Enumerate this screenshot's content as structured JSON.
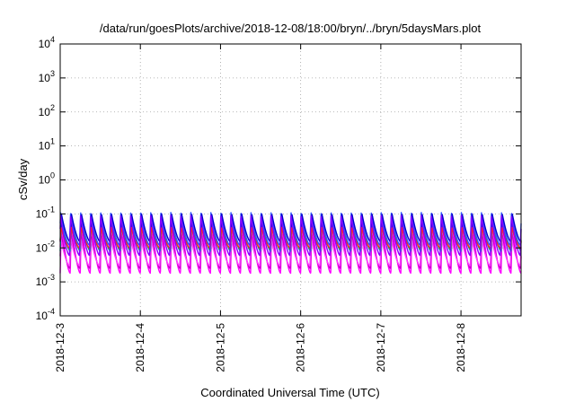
{
  "chart_data": {
    "type": "line",
    "title": "/data/run/goesPlots/archive/2018-12-08/18:00/bryn/../bryn/5daysMars.plot",
    "xlabel": "Coordinated Universal Time (UTC)",
    "ylabel": "cSv/day",
    "yscale": "log",
    "ylim": [
      0.0001,
      10000
    ],
    "y_ticks": [
      {
        "base": "10",
        "exp": "-4",
        "value": 0.0001
      },
      {
        "base": "10",
        "exp": "-3",
        "value": 0.001
      },
      {
        "base": "10",
        "exp": "-2",
        "value": 0.01
      },
      {
        "base": "10",
        "exp": "-1",
        "value": 0.1
      },
      {
        "base": "10",
        "exp": "0",
        "value": 1
      },
      {
        "base": "10",
        "exp": "1",
        "value": 10
      },
      {
        "base": "10",
        "exp": "2",
        "value": 100
      },
      {
        "base": "10",
        "exp": "3",
        "value": 1000
      },
      {
        "base": "10",
        "exp": "4",
        "value": 10000
      }
    ],
    "xlim": [
      "2018-12-03T00:00",
      "2018-12-08T18:00"
    ],
    "x_ticks": [
      "2018-12-3",
      "2018-12-4",
      "2018-12-5",
      "2018-12-6",
      "2018-12-7",
      "2018-12-8"
    ],
    "grid": true,
    "legend": "none",
    "cycles_per_day": 8,
    "series": [
      {
        "color": "#ff00ff",
        "peak": 0.055,
        "trough": 0.0018
      },
      {
        "color": "#cc00cc",
        "peak": 0.03,
        "trough": 0.0025
      },
      {
        "color": "#ff40ff",
        "peak": 0.02,
        "trough": 0.003
      },
      {
        "color": "#00bbbb",
        "peak": 0.08,
        "trough": 0.008
      },
      {
        "color": "#22aa44",
        "peak": 0.06,
        "trough": 0.009
      },
      {
        "color": "#3355ff",
        "peak": 0.11,
        "trough": 0.012
      },
      {
        "color": "#0000cc",
        "peak": 0.1,
        "trough": 0.015
      },
      {
        "color": "#ff2222",
        "peak": 0.04,
        "trough": 0.01
      },
      {
        "color": "#8800ff",
        "peak": 0.09,
        "trough": 0.006
      }
    ]
  }
}
